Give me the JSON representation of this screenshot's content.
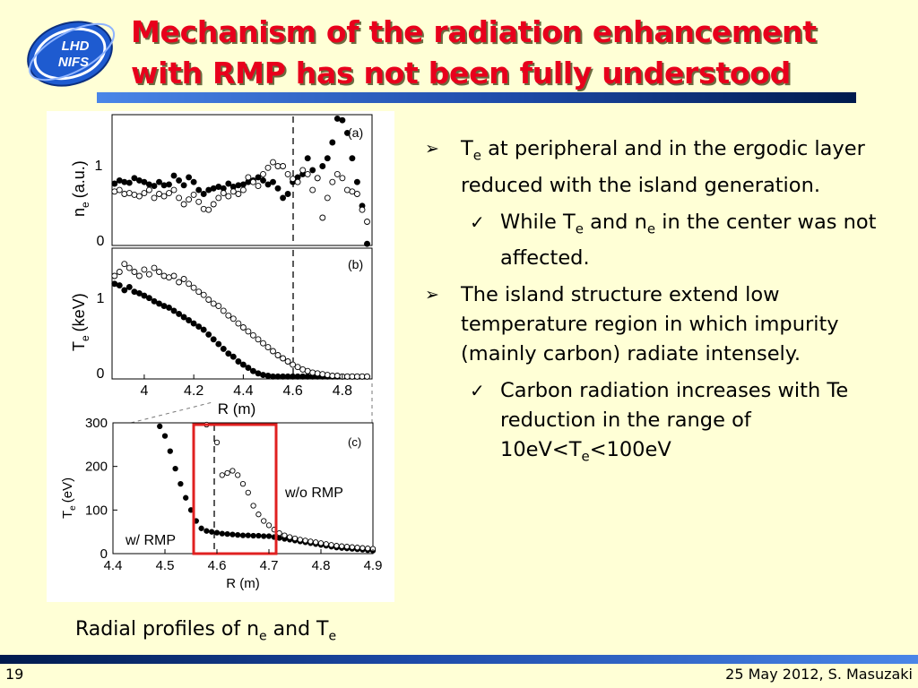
{
  "header": {
    "title_line1": "Mechanism of the radiation enhancement",
    "title_line2": "with RMP has not been fully understood",
    "logo_text_1": "LHD",
    "logo_text_2": "NIFS"
  },
  "figure": {
    "panel_a": {
      "tag": "(a)",
      "ylabel_main": "n",
      "ylabel_sub": "e",
      "ylabel_unit": "(a.u.)",
      "yticks": [
        "1",
        "0"
      ]
    },
    "panel_b": {
      "tag": "(b)",
      "ylabel_main": "T",
      "ylabel_sub": "e",
      "ylabel_unit": "(keV)",
      "yticks": [
        "1",
        "0"
      ],
      "xticks": [
        "4",
        "4.2",
        "4.4",
        "4.6",
        "4.8"
      ],
      "xlabel": "R (m)"
    },
    "panel_c": {
      "tag": "(c)",
      "ylabel_main": "T",
      "ylabel_sub": "e",
      "ylabel_unit": "(eV)",
      "yticks": [
        "300",
        "200",
        "100",
        "0"
      ],
      "xticks": [
        "4.4",
        "4.5",
        "4.6",
        "4.7",
        "4.8",
        "4.9"
      ],
      "xlabel": "R (m)",
      "label_without_rmp": "w/o RMP",
      "label_with_rmp": "w/ RMP"
    }
  },
  "caption": {
    "text": "Radial profiles of n",
    "sub1": "e",
    "and": " and T",
    "sub2": "e"
  },
  "bullets": [
    {
      "level": 1,
      "marker": "➢",
      "parts": [
        "T",
        "e",
        " at peripheral and in the ergodic layer reduced with the island generation."
      ]
    },
    {
      "level": 2,
      "marker": "✓",
      "parts": [
        "While T",
        "e",
        " and n",
        "e",
        " in the center was not affected."
      ]
    },
    {
      "level": 1,
      "marker": "➢",
      "parts": [
        "The island structure extend low temperature region in which impurity (mainly carbon) radiate intensely."
      ]
    },
    {
      "level": 2,
      "marker": "✓",
      "parts": [
        "Carbon radiation increases with Te reduction in the range of 10eV<T",
        "e",
        "<100eV"
      ]
    }
  ],
  "footer": {
    "page_number": "19",
    "text": "25 May 2012, S. Masuzaki"
  },
  "colors": {
    "background": "#ffffd6",
    "title": "#e8001c",
    "bar_dark": "#001a4d",
    "bar_light": "#4a86e8",
    "highlight_box": "#e02020"
  },
  "chart_data": [
    {
      "type": "scatter",
      "panel": "(a)",
      "xlim": [
        3.87,
        4.92
      ],
      "ylim": [
        0,
        1.65
      ],
      "yticks": [
        0,
        1
      ],
      "series": [
        {
          "name": "w/ RMP",
          "marker": "filled",
          "x": [
            3.88,
            3.9,
            3.92,
            3.94,
            3.96,
            3.98,
            4.0,
            4.02,
            4.04,
            4.06,
            4.08,
            4.1,
            4.12,
            4.14,
            4.16,
            4.18,
            4.2,
            4.22,
            4.24,
            4.26,
            4.28,
            4.3,
            4.32,
            4.34,
            4.36,
            4.38,
            4.4,
            4.42,
            4.44,
            4.46,
            4.48,
            4.5,
            4.52,
            4.54,
            4.56,
            4.58,
            4.6,
            4.62,
            4.64,
            4.66,
            4.68,
            4.7,
            4.72,
            4.74,
            4.76,
            4.78,
            4.8,
            4.82,
            4.84,
            4.86,
            4.88,
            4.9
          ],
          "y": [
            0.78,
            0.82,
            0.8,
            0.79,
            0.85,
            0.82,
            0.8,
            0.77,
            0.75,
            0.8,
            0.76,
            0.77,
            0.88,
            0.82,
            0.76,
            0.86,
            0.8,
            0.7,
            0.65,
            0.7,
            0.72,
            0.74,
            0.72,
            0.78,
            0.74,
            0.76,
            0.77,
            0.8,
            0.82,
            0.86,
            0.82,
            0.77,
            0.8,
            0.72,
            0.6,
            0.65,
            0.8,
            0.86,
            0.9,
            1.1,
            0.95,
            0.85,
            1.0,
            1.1,
            1.3,
            1.6,
            1.58,
            1.42,
            1.1,
            0.8,
            0.5,
            0.02
          ]
        },
        {
          "name": "w/o RMP",
          "marker": "open",
          "x": [
            3.88,
            3.9,
            3.92,
            3.94,
            3.96,
            3.98,
            4.0,
            4.02,
            4.04,
            4.06,
            4.08,
            4.1,
            4.12,
            4.14,
            4.16,
            4.18,
            4.2,
            4.22,
            4.24,
            4.26,
            4.28,
            4.3,
            4.32,
            4.34,
            4.36,
            4.38,
            4.4,
            4.42,
            4.44,
            4.46,
            4.48,
            4.5,
            4.52,
            4.54,
            4.56,
            4.58,
            4.6,
            4.62,
            4.64,
            4.66,
            4.68,
            4.7,
            4.72,
            4.74,
            4.76,
            4.78,
            4.8,
            4.82,
            4.84,
            4.86,
            4.88,
            4.9
          ],
          "y": [
            0.68,
            0.7,
            0.65,
            0.66,
            0.64,
            0.62,
            0.66,
            0.7,
            0.6,
            0.65,
            0.62,
            0.66,
            0.7,
            0.6,
            0.52,
            0.58,
            0.64,
            0.55,
            0.46,
            0.45,
            0.52,
            0.6,
            0.66,
            0.62,
            0.68,
            0.65,
            0.7,
            0.86,
            0.8,
            0.75,
            0.9,
            0.98,
            1.05,
            1.0,
            1.0,
            0.9,
            0.84,
            0.8,
            0.95,
            0.9,
            0.7,
            0.85,
            0.35,
            0.6,
            0.8,
            0.9,
            0.85,
            0.7,
            0.68,
            0.65,
            0.45,
            0.3
          ]
        }
      ]
    },
    {
      "type": "scatter",
      "panel": "(b)",
      "xlim": [
        3.87,
        4.92
      ],
      "ylim": [
        0,
        1.65
      ],
      "xticks": [
        4,
        4.2,
        4.4,
        4.6,
        4.8
      ],
      "yticks": [
        0,
        1
      ],
      "xlabel": "R (m)",
      "series": [
        {
          "name": "w/ RMP",
          "marker": "filled",
          "x": [
            3.88,
            3.9,
            3.92,
            3.94,
            3.96,
            3.98,
            4.0,
            4.02,
            4.04,
            4.06,
            4.08,
            4.1,
            4.12,
            4.14,
            4.16,
            4.18,
            4.2,
            4.22,
            4.24,
            4.26,
            4.28,
            4.3,
            4.32,
            4.34,
            4.36,
            4.38,
            4.4,
            4.42,
            4.44,
            4.46,
            4.48,
            4.5,
            4.52,
            4.54,
            4.56,
            4.58,
            4.6,
            4.62,
            4.64,
            4.66,
            4.68,
            4.7,
            4.72,
            4.74,
            4.76,
            4.78,
            4.8,
            4.82,
            4.84,
            4.86,
            4.88,
            4.9
          ],
          "y": [
            1.2,
            1.18,
            1.12,
            1.16,
            1.1,
            1.08,
            1.05,
            1.02,
            0.98,
            0.95,
            0.92,
            0.9,
            0.86,
            0.82,
            0.78,
            0.74,
            0.7,
            0.66,
            0.62,
            0.56,
            0.5,
            0.44,
            0.38,
            0.32,
            0.28,
            0.22,
            0.18,
            0.14,
            0.1,
            0.07,
            0.05,
            0.04,
            0.03,
            0.03,
            0.03,
            0.03,
            0.03,
            0.03,
            0.03,
            0.03,
            0.03,
            0.03,
            0.03,
            0.03,
            0.03,
            0.03,
            0.03,
            0.03,
            0.03,
            0.03,
            0.03,
            0.03
          ]
        },
        {
          "name": "w/o RMP",
          "marker": "open",
          "x": [
            3.88,
            3.9,
            3.92,
            3.94,
            3.96,
            3.98,
            4.0,
            4.02,
            4.04,
            4.06,
            4.08,
            4.1,
            4.12,
            4.14,
            4.16,
            4.18,
            4.2,
            4.22,
            4.24,
            4.26,
            4.28,
            4.3,
            4.32,
            4.34,
            4.36,
            4.38,
            4.4,
            4.42,
            4.44,
            4.46,
            4.48,
            4.5,
            4.52,
            4.54,
            4.56,
            4.58,
            4.6,
            4.62,
            4.64,
            4.66,
            4.68,
            4.7,
            4.72,
            4.74,
            4.76,
            4.78,
            4.8,
            4.82,
            4.84,
            4.86,
            4.88,
            4.9
          ],
          "y": [
            1.3,
            1.35,
            1.45,
            1.4,
            1.35,
            1.3,
            1.38,
            1.32,
            1.4,
            1.35,
            1.3,
            1.28,
            1.3,
            1.22,
            1.26,
            1.2,
            1.15,
            1.1,
            1.06,
            1.0,
            0.95,
            0.92,
            0.86,
            0.8,
            0.76,
            0.7,
            0.65,
            0.6,
            0.55,
            0.5,
            0.45,
            0.4,
            0.35,
            0.3,
            0.26,
            0.22,
            0.18,
            0.15,
            0.12,
            0.1,
            0.08,
            0.07,
            0.06,
            0.05,
            0.04,
            0.04,
            0.03,
            0.03,
            0.03,
            0.03,
            0.03,
            0.03
          ]
        }
      ]
    },
    {
      "type": "scatter",
      "panel": "(c)",
      "xlim": [
        4.4,
        4.9
      ],
      "ylim": [
        0,
        300
      ],
      "xticks": [
        4.4,
        4.5,
        4.6,
        4.7,
        4.8,
        4.9
      ],
      "yticks": [
        0,
        100,
        200,
        300
      ],
      "xlabel": "R (m)",
      "series": [
        {
          "name": "w/ RMP",
          "marker": "filled",
          "x": [
            4.49,
            4.5,
            4.51,
            4.52,
            4.53,
            4.54,
            4.55,
            4.56,
            4.57,
            4.58,
            4.59,
            4.6,
            4.61,
            4.62,
            4.63,
            4.64,
            4.65,
            4.66,
            4.67,
            4.68,
            4.69,
            4.7,
            4.71,
            4.72,
            4.73,
            4.74,
            4.75,
            4.76,
            4.77,
            4.78,
            4.79,
            4.8,
            4.81,
            4.82,
            4.83,
            4.84,
            4.85,
            4.86,
            4.87,
            4.88,
            4.89,
            4.9
          ],
          "y": [
            292,
            270,
            235,
            195,
            160,
            128,
            100,
            75,
            58,
            52,
            50,
            48,
            46,
            45,
            44,
            43,
            42,
            42,
            41,
            41,
            40,
            40,
            38,
            36,
            34,
            32,
            30,
            28,
            26,
            24,
            22,
            20,
            18,
            16,
            14,
            13,
            12,
            11,
            10,
            9,
            8,
            7
          ]
        },
        {
          "name": "w/o RMP",
          "marker": "open",
          "x": [
            4.58,
            4.6,
            4.61,
            4.62,
            4.63,
            4.64,
            4.65,
            4.66,
            4.67,
            4.68,
            4.69,
            4.7,
            4.71,
            4.72,
            4.73,
            4.74,
            4.75,
            4.76,
            4.77,
            4.78,
            4.79,
            4.8,
            4.81,
            4.82,
            4.83,
            4.84,
            4.85,
            4.86,
            4.87,
            4.88,
            4.89,
            4.9
          ],
          "y": [
            298,
            255,
            180,
            185,
            190,
            180,
            160,
            140,
            110,
            90,
            75,
            65,
            55,
            47,
            42,
            38,
            35,
            32,
            30,
            28,
            26,
            24,
            22,
            20,
            18,
            17,
            16,
            15,
            14,
            13,
            12,
            11
          ]
        }
      ]
    }
  ]
}
